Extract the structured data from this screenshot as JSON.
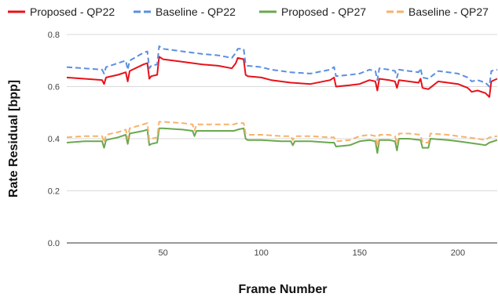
{
  "chart_data": {
    "type": "line",
    "title": "",
    "xlabel": "Frame Number",
    "ylabel": "Rate Residual [bpp]",
    "xlim": [
      1,
      220
    ],
    "ylim": [
      0,
      0.8
    ],
    "xticks": [
      50,
      100,
      150,
      200
    ],
    "yticks": [
      0.0,
      0.2,
      0.4,
      0.6,
      0.8
    ],
    "ytick_labels": [
      "0.0",
      "0.2",
      "0.4",
      "0.6",
      "0.8"
    ],
    "grid": "horizontal",
    "legend_position": "top",
    "series": [
      {
        "name": "Proposed - QP22",
        "color": "#e8111a",
        "dash": "solid",
        "points": [
          [
            1,
            0.635
          ],
          [
            10,
            0.63
          ],
          [
            19,
            0.625
          ],
          [
            20,
            0.61
          ],
          [
            21,
            0.635
          ],
          [
            27,
            0.645
          ],
          [
            31,
            0.655
          ],
          [
            32,
            0.62
          ],
          [
            33,
            0.66
          ],
          [
            40,
            0.685
          ],
          [
            42,
            0.69
          ],
          [
            43,
            0.63
          ],
          [
            44,
            0.64
          ],
          [
            47,
            0.645
          ],
          [
            48,
            0.715
          ],
          [
            50,
            0.705
          ],
          [
            60,
            0.695
          ],
          [
            70,
            0.685
          ],
          [
            78,
            0.68
          ],
          [
            85,
            0.67
          ],
          [
            87,
            0.69
          ],
          [
            88,
            0.71
          ],
          [
            91,
            0.705
          ],
          [
            92,
            0.645
          ],
          [
            93,
            0.64
          ],
          [
            100,
            0.635
          ],
          [
            105,
            0.625
          ],
          [
            115,
            0.615
          ],
          [
            125,
            0.61
          ],
          [
            135,
            0.625
          ],
          [
            137,
            0.635
          ],
          [
            138,
            0.6
          ],
          [
            145,
            0.605
          ],
          [
            150,
            0.61
          ],
          [
            155,
            0.625
          ],
          [
            158,
            0.62
          ],
          [
            159,
            0.585
          ],
          [
            160,
            0.63
          ],
          [
            165,
            0.625
          ],
          [
            168,
            0.62
          ],
          [
            169,
            0.595
          ],
          [
            170,
            0.625
          ],
          [
            175,
            0.62
          ],
          [
            180,
            0.615
          ],
          [
            181,
            0.63
          ],
          [
            182,
            0.595
          ],
          [
            185,
            0.59
          ],
          [
            190,
            0.62
          ],
          [
            200,
            0.61
          ],
          [
            205,
            0.595
          ],
          [
            207,
            0.58
          ],
          [
            210,
            0.585
          ],
          [
            214,
            0.575
          ],
          [
            216,
            0.56
          ],
          [
            217,
            0.62
          ],
          [
            220,
            0.63
          ]
        ]
      },
      {
        "name": "Baseline - QP22",
        "color": "#5b8fe0",
        "dash": "dashed",
        "points": [
          [
            1,
            0.675
          ],
          [
            10,
            0.67
          ],
          [
            19,
            0.665
          ],
          [
            20,
            0.65
          ],
          [
            21,
            0.675
          ],
          [
            27,
            0.69
          ],
          [
            31,
            0.7
          ],
          [
            32,
            0.665
          ],
          [
            33,
            0.7
          ],
          [
            40,
            0.73
          ],
          [
            42,
            0.735
          ],
          [
            43,
            0.67
          ],
          [
            44,
            0.68
          ],
          [
            47,
            0.685
          ],
          [
            48,
            0.755
          ],
          [
            50,
            0.745
          ],
          [
            60,
            0.735
          ],
          [
            70,
            0.725
          ],
          [
            78,
            0.72
          ],
          [
            85,
            0.71
          ],
          [
            87,
            0.73
          ],
          [
            88,
            0.745
          ],
          [
            91,
            0.745
          ],
          [
            92,
            0.685
          ],
          [
            93,
            0.68
          ],
          [
            100,
            0.675
          ],
          [
            105,
            0.665
          ],
          [
            115,
            0.655
          ],
          [
            125,
            0.65
          ],
          [
            135,
            0.665
          ],
          [
            137,
            0.675
          ],
          [
            138,
            0.64
          ],
          [
            145,
            0.645
          ],
          [
            150,
            0.65
          ],
          [
            155,
            0.665
          ],
          [
            158,
            0.66
          ],
          [
            159,
            0.625
          ],
          [
            160,
            0.67
          ],
          [
            165,
            0.665
          ],
          [
            168,
            0.66
          ],
          [
            169,
            0.635
          ],
          [
            170,
            0.665
          ],
          [
            175,
            0.66
          ],
          [
            180,
            0.655
          ],
          [
            181,
            0.67
          ],
          [
            182,
            0.635
          ],
          [
            185,
            0.63
          ],
          [
            190,
            0.66
          ],
          [
            200,
            0.65
          ],
          [
            205,
            0.635
          ],
          [
            207,
            0.62
          ],
          [
            210,
            0.625
          ],
          [
            214,
            0.615
          ],
          [
            216,
            0.6
          ],
          [
            217,
            0.66
          ],
          [
            220,
            0.665
          ]
        ]
      },
      {
        "name": "Proposed - QP27",
        "color": "#6aa84f",
        "dash": "solid",
        "points": [
          [
            1,
            0.385
          ],
          [
            10,
            0.39
          ],
          [
            19,
            0.39
          ],
          [
            20,
            0.365
          ],
          [
            21,
            0.395
          ],
          [
            27,
            0.405
          ],
          [
            31,
            0.415
          ],
          [
            32,
            0.38
          ],
          [
            33,
            0.42
          ],
          [
            40,
            0.43
          ],
          [
            42,
            0.435
          ],
          [
            43,
            0.375
          ],
          [
            44,
            0.38
          ],
          [
            47,
            0.385
          ],
          [
            48,
            0.44
          ],
          [
            50,
            0.44
          ],
          [
            60,
            0.435
          ],
          [
            65,
            0.43
          ],
          [
            66,
            0.41
          ],
          [
            67,
            0.43
          ],
          [
            75,
            0.43
          ],
          [
            80,
            0.43
          ],
          [
            86,
            0.43
          ],
          [
            88,
            0.435
          ],
          [
            91,
            0.44
          ],
          [
            92,
            0.4
          ],
          [
            93,
            0.395
          ],
          [
            100,
            0.395
          ],
          [
            110,
            0.39
          ],
          [
            115,
            0.39
          ],
          [
            116,
            0.375
          ],
          [
            117,
            0.39
          ],
          [
            125,
            0.39
          ],
          [
            135,
            0.385
          ],
          [
            137,
            0.385
          ],
          [
            138,
            0.37
          ],
          [
            145,
            0.375
          ],
          [
            150,
            0.39
          ],
          [
            155,
            0.395
          ],
          [
            158,
            0.39
          ],
          [
            159,
            0.345
          ],
          [
            160,
            0.395
          ],
          [
            165,
            0.395
          ],
          [
            168,
            0.39
          ],
          [
            169,
            0.355
          ],
          [
            170,
            0.4
          ],
          [
            175,
            0.4
          ],
          [
            181,
            0.395
          ],
          [
            182,
            0.365
          ],
          [
            185,
            0.365
          ],
          [
            186,
            0.4
          ],
          [
            195,
            0.395
          ],
          [
            200,
            0.39
          ],
          [
            205,
            0.385
          ],
          [
            210,
            0.38
          ],
          [
            214,
            0.375
          ],
          [
            216,
            0.385
          ],
          [
            220,
            0.395
          ]
        ]
      },
      {
        "name": "Baseline - QP27",
        "color": "#f6b26b",
        "dash": "dashed",
        "points": [
          [
            1,
            0.405
          ],
          [
            10,
            0.41
          ],
          [
            19,
            0.41
          ],
          [
            20,
            0.385
          ],
          [
            21,
            0.415
          ],
          [
            27,
            0.425
          ],
          [
            31,
            0.435
          ],
          [
            32,
            0.4
          ],
          [
            33,
            0.44
          ],
          [
            40,
            0.455
          ],
          [
            42,
            0.46
          ],
          [
            43,
            0.395
          ],
          [
            44,
            0.4
          ],
          [
            47,
            0.405
          ],
          [
            48,
            0.465
          ],
          [
            50,
            0.465
          ],
          [
            60,
            0.46
          ],
          [
            65,
            0.455
          ],
          [
            66,
            0.43
          ],
          [
            67,
            0.455
          ],
          [
            75,
            0.455
          ],
          [
            80,
            0.455
          ],
          [
            86,
            0.455
          ],
          [
            88,
            0.46
          ],
          [
            91,
            0.46
          ],
          [
            92,
            0.42
          ],
          [
            93,
            0.415
          ],
          [
            100,
            0.415
          ],
          [
            110,
            0.41
          ],
          [
            115,
            0.41
          ],
          [
            116,
            0.395
          ],
          [
            117,
            0.41
          ],
          [
            125,
            0.41
          ],
          [
            135,
            0.405
          ],
          [
            137,
            0.405
          ],
          [
            138,
            0.39
          ],
          [
            145,
            0.395
          ],
          [
            150,
            0.41
          ],
          [
            155,
            0.415
          ],
          [
            158,
            0.41
          ],
          [
            159,
            0.37
          ],
          [
            160,
            0.415
          ],
          [
            165,
            0.415
          ],
          [
            168,
            0.41
          ],
          [
            169,
            0.38
          ],
          [
            170,
            0.42
          ],
          [
            175,
            0.42
          ],
          [
            181,
            0.415
          ],
          [
            182,
            0.385
          ],
          [
            185,
            0.385
          ],
          [
            186,
            0.42
          ],
          [
            195,
            0.415
          ],
          [
            200,
            0.41
          ],
          [
            205,
            0.405
          ],
          [
            210,
            0.4
          ],
          [
            214,
            0.395
          ],
          [
            216,
            0.405
          ],
          [
            220,
            0.41
          ]
        ]
      }
    ]
  }
}
